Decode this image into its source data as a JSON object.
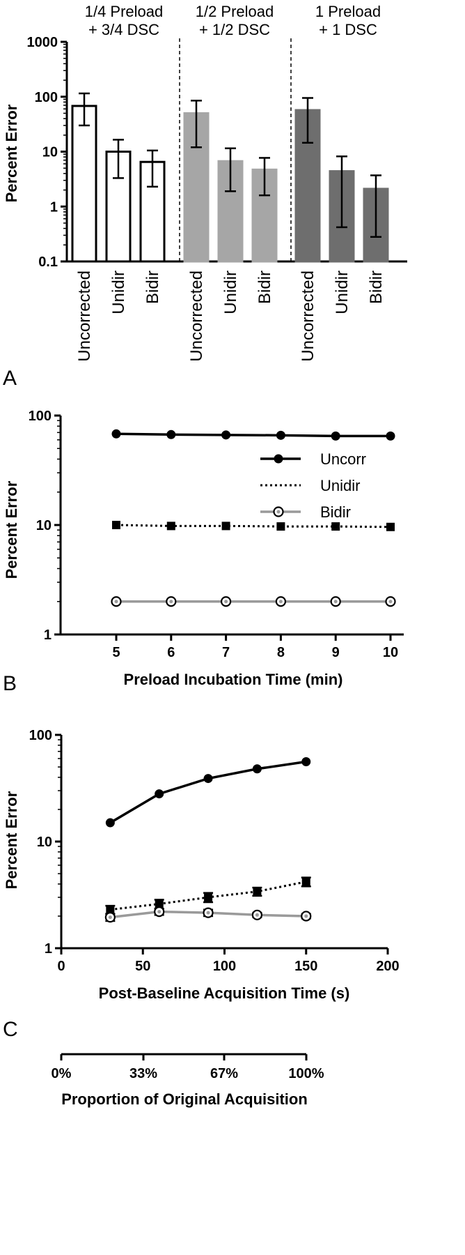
{
  "panels": {
    "a": {
      "letter": "A"
    },
    "b": {
      "letter": "B"
    },
    "c": {
      "letter": "C"
    }
  },
  "chart_data": [
    {
      "type": "bar",
      "scale": "log",
      "ylabel": "Percent Error",
      "ylim": [
        0.1,
        1000
      ],
      "yticks": [
        "0.1",
        "1",
        "10",
        "100",
        "1000"
      ],
      "groups": [
        {
          "title_line1": "1/4 Preload",
          "title_line2": "+ 3/4 DSC",
          "color": "#ffffff",
          "stroke": "#000000",
          "categories": [
            "Uncorrected",
            "Unidir",
            "Bidir"
          ],
          "values": [
            68,
            10,
            6.5
          ],
          "err_low": [
            30,
            3.3,
            2.3
          ],
          "err_high": [
            115,
            16.5,
            10.5
          ]
        },
        {
          "title_line1": "1/2 Preload",
          "title_line2": "+ 1/2 DSC",
          "color": "#a6a6a6",
          "stroke": "#a6a6a6",
          "categories": [
            "Uncorrected",
            "Unidir",
            "Bidir"
          ],
          "values": [
            50,
            6.7,
            4.7
          ],
          "err_low": [
            12,
            1.9,
            1.6
          ],
          "err_high": [
            85,
            11.5,
            7.7
          ]
        },
        {
          "title_line1": "1 Preload",
          "title_line2": "+ 1 DSC",
          "color": "#6e6e6e",
          "stroke": "#6e6e6e",
          "categories": [
            "Uncorrected",
            "Unidir",
            "Bidir"
          ],
          "values": [
            57,
            4.4,
            2.1
          ],
          "err_low": [
            14.5,
            0.42,
            0.28
          ],
          "err_high": [
            95,
            8.2,
            3.7
          ]
        }
      ]
    },
    {
      "type": "line",
      "scale": "log",
      "xlabel": "Preload Incubation Time (min)",
      "ylabel": "Percent Error",
      "ylim": [
        1,
        100
      ],
      "yticks": [
        "1",
        "10",
        "100"
      ],
      "xticks": [
        "5",
        "6",
        "7",
        "8",
        "9",
        "10"
      ],
      "x": [
        5,
        6,
        7,
        8,
        9,
        10
      ],
      "legend": "top-right",
      "series": [
        {
          "name": "Uncorr",
          "marker": "circle-filled",
          "dash": "solid",
          "color": "#000000",
          "values": [
            68,
            67,
            66.5,
            66,
            65,
            65
          ]
        },
        {
          "name": "Unidir",
          "marker": "square",
          "dash": "dotted",
          "color": "#000000",
          "values": [
            10,
            9.8,
            9.8,
            9.7,
            9.7,
            9.6
          ]
        },
        {
          "name": "Bidir",
          "marker": "circle-open",
          "dash": "solid",
          "color": "#9a9a9a",
          "values": [
            2.0,
            2.0,
            2.0,
            2.0,
            2.0,
            2.0
          ]
        }
      ]
    },
    {
      "type": "line",
      "scale": "log",
      "xlabel": "Post-Baseline Acquisition Time (s)",
      "ylabel": "Percent Error",
      "ylim": [
        1,
        100
      ],
      "xlim": [
        0,
        200
      ],
      "yticks": [
        "1",
        "10",
        "100"
      ],
      "xticks": [
        "0",
        "50",
        "100",
        "150",
        "200"
      ],
      "x": [
        30,
        60,
        90,
        120,
        150
      ],
      "series": [
        {
          "name": "Uncorr",
          "marker": "circle-filled",
          "dash": "solid",
          "color": "#000000",
          "values": [
            15,
            28,
            39,
            48,
            56
          ]
        },
        {
          "name": "Unidir",
          "marker": "square",
          "dash": "dotted",
          "color": "#000000",
          "values": [
            2.3,
            2.6,
            3.0,
            3.4,
            4.2
          ],
          "err": [
            0.2,
            0.25,
            0.3,
            0.3,
            0.4
          ]
        },
        {
          "name": "Bidir",
          "marker": "circle-open",
          "dash": "solid",
          "color": "#9a9a9a",
          "values": [
            1.95,
            2.2,
            2.15,
            2.05,
            2.0
          ],
          "err": [
            0.15,
            0.15,
            0.15,
            0.1,
            0.1
          ]
        }
      ],
      "secondary_axis": {
        "label": "Proportion of Original Acquisition",
        "ticks": [
          "0%",
          "33%",
          "67%",
          "100%"
        ]
      }
    }
  ]
}
